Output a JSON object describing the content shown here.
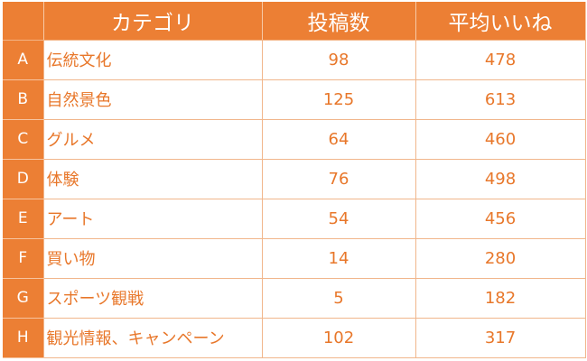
{
  "table": {
    "headers": [
      "",
      "カテゴリ",
      "投稿数",
      "平均いいね"
    ],
    "rows": [
      {
        "letter": "A",
        "category": "伝統文化",
        "posts": "98",
        "avg_likes": "478"
      },
      {
        "letter": "B",
        "category": "自然景色",
        "posts": "125",
        "avg_likes": "613"
      },
      {
        "letter": "C",
        "category": "グルメ",
        "posts": "64",
        "avg_likes": "460"
      },
      {
        "letter": "D",
        "category": "体験",
        "posts": "76",
        "avg_likes": "498"
      },
      {
        "letter": "E",
        "category": "アート",
        "posts": "54",
        "avg_likes": "456"
      },
      {
        "letter": "F",
        "category": "買い物",
        "posts": "14",
        "avg_likes": "280"
      },
      {
        "letter": "G",
        "category": "スポーツ観戦",
        "posts": "5",
        "avg_likes": "182"
      },
      {
        "letter": "H",
        "category": "観光情報、キャンペーン",
        "posts": "102",
        "avg_likes": "317"
      }
    ]
  },
  "colors": {
    "header_bg": "#ec7f34",
    "text_accent": "#e8772a",
    "grid_line": "#f1b68b"
  }
}
